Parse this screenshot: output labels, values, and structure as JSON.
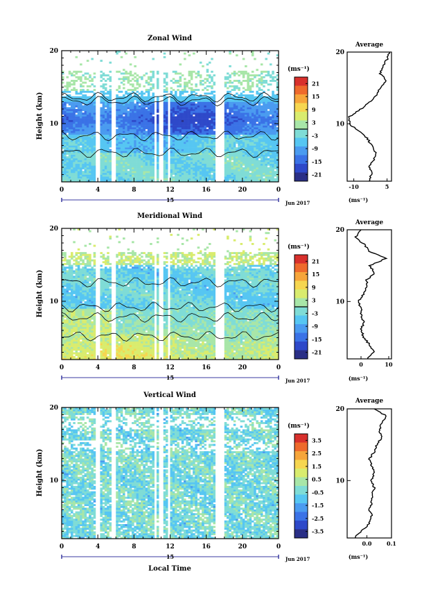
{
  "shared": {
    "xlabel": "Local Time",
    "date_label": "Jun 2017",
    "day_marker": "15",
    "x_ticks": [
      "0",
      "4",
      "8",
      "12",
      "16",
      "20",
      "0"
    ],
    "ylabel": "Height (km)",
    "y_ticks": [
      "20",
      "10"
    ],
    "unit_label": "(ms⁻¹)",
    "average_title": "Average"
  },
  "chart_data": [
    {
      "type": "heatmap",
      "title": "Zonal Wind",
      "x_range_hours": [
        0,
        24
      ],
      "ylim_km": [
        2,
        20
      ],
      "colorbar_ticks": [
        "21",
        "15",
        "9",
        "3",
        "-3",
        "-9",
        "-15",
        "-21"
      ],
      "colorbar_range": [
        -24,
        24
      ],
      "contour_zero_line": true,
      "data_gaps_hours": [
        4.0,
        5.7,
        10.4,
        11.0,
        11.9,
        17.3,
        17.7
      ],
      "profile": {
        "title": "Average",
        "x_ticks": [
          "-10",
          "5"
        ],
        "xlim": [
          -13,
          7
        ],
        "heights_km": [
          2,
          3,
          4,
          5,
          6,
          7,
          8,
          9,
          10,
          11,
          12,
          13,
          14,
          15,
          16,
          17,
          18,
          19,
          20
        ],
        "values": [
          -3,
          -2,
          -3,
          -1,
          0,
          -2,
          -4,
          -8,
          -12,
          -12,
          -7,
          -3,
          0,
          2,
          5,
          2,
          3,
          5,
          6
        ]
      }
    },
    {
      "type": "heatmap",
      "title": "Meridional Wind",
      "x_range_hours": [
        0,
        24
      ],
      "ylim_km": [
        2,
        20
      ],
      "colorbar_ticks": [
        "21",
        "15",
        "9",
        "3",
        "-3",
        "-9",
        "-15",
        "-21"
      ],
      "colorbar_range": [
        -24,
        24
      ],
      "contour_zero_line": true,
      "data_gaps_hours": [
        4.0,
        5.7,
        10.4,
        11.0,
        11.9,
        17.3,
        17.7
      ],
      "profile": {
        "title": "Average",
        "x_ticks": [
          "0",
          "10"
        ],
        "xlim": [
          -5,
          11
        ],
        "heights_km": [
          2,
          3,
          4,
          5,
          6,
          7,
          8,
          9,
          10,
          11,
          12,
          13,
          14,
          15,
          16,
          17,
          18,
          19,
          20
        ],
        "values": [
          2,
          5,
          3,
          1,
          0,
          1,
          0,
          0,
          -1,
          1,
          2,
          2,
          5,
          3,
          9,
          3,
          1,
          -2,
          0
        ]
      }
    },
    {
      "type": "heatmap",
      "title": "Vertical Wind",
      "x_range_hours": [
        0,
        24
      ],
      "ylim_km": [
        2,
        20
      ],
      "colorbar_ticks": [
        "3.5",
        "2.5",
        "1.5",
        "0.5",
        "-0.5",
        "-1.5",
        "-2.5",
        "-3.5"
      ],
      "colorbar_range": [
        -4,
        4
      ],
      "contour_zero_line": false,
      "data_gaps_hours": [
        4.0,
        5.7,
        10.4,
        11.0,
        11.9,
        17.3,
        17.7
      ],
      "profile": {
        "title": "Average",
        "x_ticks": [
          "0.0",
          "0.1"
        ],
        "xlim": [
          -0.08,
          0.1
        ],
        "heights_km": [
          2,
          3,
          4,
          5,
          6,
          7,
          8,
          9,
          10,
          11,
          12,
          13,
          14,
          15,
          16,
          17,
          18,
          19,
          20
        ],
        "values": [
          -0.05,
          -0.02,
          0.01,
          0.02,
          0.01,
          0.02,
          0.02,
          0.03,
          0.02,
          0.03,
          0.02,
          0.01,
          0.03,
          0.04,
          0.06,
          0.05,
          0.06,
          0.08,
          0.03
        ]
      }
    }
  ],
  "colors": {
    "palette": [
      "#2a2f86",
      "#2e49c9",
      "#3a72e6",
      "#4a9bf0",
      "#56c6f2",
      "#7fdcd6",
      "#a8e6a8",
      "#d9ec6e",
      "#f6d650",
      "#f6a53a",
      "#ee6a2c",
      "#d8302c"
    ],
    "missing": "#ffffff"
  }
}
